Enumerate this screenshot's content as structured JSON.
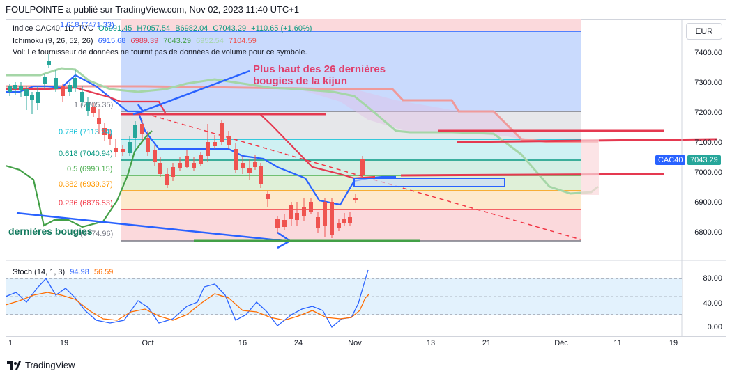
{
  "header": {
    "publisher_line": "FOULPOINTE a publié sur TradingView.com, Nov 02, 2023 11:40 UTC+1"
  },
  "legend": {
    "main": {
      "name": "Indice CAC40, 1D, TVC",
      "o": "O6991.45",
      "h": "H7057.54",
      "l": "B6982.04",
      "c": "C7043.29",
      "chg": "+110.65 (+1.60%)"
    },
    "ichimoku": {
      "name": "Ichimoku (9, 26, 52, 26)",
      "v1": "6915.68",
      "v2": "6989.39",
      "v3": "7043.29",
      "v4": "6952.54",
      "v5": "7104.59"
    },
    "volume": "Vol: Le fournisseur de données ne fournit pas de données de volume pour ce symbole.",
    "stoch": {
      "name": "Stoch (14, 1, 3)",
      "k": "94.98",
      "d": "56.59"
    }
  },
  "currency": "EUR",
  "price_axis": [
    "7400.00",
    "7300.00",
    "7200.00",
    "7100.00",
    "7000.00",
    "6900.00",
    "6800.00"
  ],
  "stoch_axis": [
    "80.00",
    "40.00",
    "0.00"
  ],
  "price_tag": {
    "symbol": "CAC40",
    "value": "7043.29"
  },
  "x_axis": [
    "1",
    "19",
    "Oct",
    "16",
    "24",
    "Nov",
    "13",
    "21",
    "Déc",
    "11",
    "19"
  ],
  "fib_levels": [
    {
      "ratio": "1.618 (7471.33)",
      "color": "#2962ff"
    },
    {
      "ratio": "1 (7205.35)",
      "color": "#787b86"
    },
    {
      "ratio": "0.786 (7113.24)",
      "color": "#00bcd4"
    },
    {
      "ratio": "0.618 (7040.94)",
      "color": "#089981"
    },
    {
      "ratio": "0.5 (6990.15)",
      "color": "#4caf50"
    },
    {
      "ratio": "0.382 (6939.37)",
      "color": "#ff9800"
    },
    {
      "ratio": "0.236 (6876.53)",
      "color": "#f23645"
    },
    {
      "ratio": "0 (6774.96)",
      "color": "#787b86"
    }
  ],
  "annotations": {
    "top_text_line1": "Plus haut des 26 dernières",
    "top_text_line2": "bougies de la kijun",
    "left_text": "dernières bougies"
  },
  "colors": {
    "up": "#26a69a",
    "down": "#ef5350",
    "tenkan": "#2962ff",
    "kijun": "#e53950",
    "chikou": "#43a047",
    "senkouA": "#a5d6a7",
    "senkouB": "#ef9a9a",
    "stochK": "#2962ff",
    "stochD": "#ff6d00"
  },
  "footer": {
    "brand": "TradingView"
  }
}
